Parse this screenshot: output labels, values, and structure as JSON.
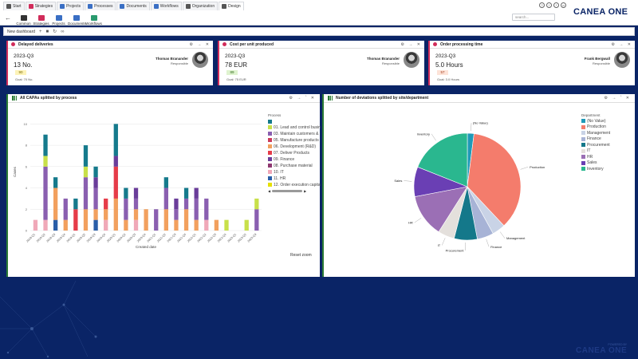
{
  "tabs": [
    {
      "label": "Start",
      "color": "#555"
    },
    {
      "label": "Strategies",
      "color": "#d12c5a"
    },
    {
      "label": "Projects",
      "color": "#3a6fc4"
    },
    {
      "label": "Processes",
      "color": "#3a6fc4"
    },
    {
      "label": "Documents",
      "color": "#3a6fc4"
    },
    {
      "label": "Workflows",
      "color": "#3a6fc4"
    },
    {
      "label": "Organization",
      "color": "#555"
    },
    {
      "label": "Design",
      "color": "#555"
    }
  ],
  "subnav": [
    {
      "label": "Common",
      "color": "#333"
    },
    {
      "label": "Strategies",
      "color": "#d12c5a"
    },
    {
      "label": "Projects",
      "color": "#3a6fc4"
    },
    {
      "label": "Documents",
      "color": "#3a6fc4"
    },
    {
      "label": "Workflows",
      "color": "#2a9a6e"
    }
  ],
  "search_placeholder": "search...",
  "logo_a": "CANEA ",
  "logo_b": "ONE",
  "dashboard_title": "New dashboard",
  "kpis": [
    {
      "title": "Delayed deliveries",
      "quarter": "2023-Q3",
      "value": "13 No.",
      "badge": "90",
      "badge_bg": "#fdf3b8",
      "badge_fg": "#7a6a00",
      "goal": "Goal: 70 No.",
      "name": "Thomas Branander",
      "role": "Responsible"
    },
    {
      "title": "Cost per unit produced",
      "quarter": "2023-Q3",
      "value": "78 EUR",
      "badge": "89",
      "badge_bg": "#dff3cf",
      "badge_fg": "#2f6b1a",
      "goal": "Goal: 75 EUR",
      "name": "Thomas Branander",
      "role": "Responsible"
    },
    {
      "title": "Order processing time",
      "quarter": "2023-Q3",
      "value": "5.0 Hours",
      "badge": "57",
      "badge_bg": "#fde3d8",
      "badge_fg": "#a33b1a",
      "goal": "Goal: 3.0 Hours",
      "name": "Frank Bergwall",
      "role": "Responsible"
    }
  ],
  "left_panel": {
    "title": "All CAPAs splitted by process",
    "legend_title": "Process",
    "legend_items": [
      {
        "label": "",
        "color": "#157a8c"
      },
      {
        "label": "01. Lead and control busin",
        "color": "#c8e04a"
      },
      {
        "label": "03. Maintain customers &",
        "color": "#8a5fb0"
      },
      {
        "label": "05. Manufacture products",
        "color": "#cc3b5a"
      },
      {
        "label": "06. Development (R&D)",
        "color": "#f2a05e"
      },
      {
        "label": "07. Deliver Products",
        "color": "#e63c49"
      },
      {
        "label": "09. Finance",
        "color": "#6a3d9a"
      },
      {
        "label": "08. Purchase material",
        "color": "#8e3770"
      },
      {
        "label": "10. IT",
        "color": "#f0a8b8"
      },
      {
        "label": "11. HR",
        "color": "#2a5ea8"
      },
      {
        "label": "12. Order execution capita",
        "color": "#e6e000"
      }
    ],
    "page_nav": "1/2",
    "reset": "Reset zoom"
  },
  "chart_data": [
    {
      "type": "bar",
      "stacked": true,
      "title": "All CAPAs splitted by process",
      "xlabel": "Created date",
      "ylabel": "Cases",
      "ylim": [
        0,
        11
      ],
      "yticks": [
        0,
        2,
        4,
        6,
        8,
        10
      ],
      "categories": [
        "2018-Q1",
        "2018-Q2",
        "2018-Q3",
        "2018-Q4",
        "2019-Q1",
        "2019-Q2",
        "2019-Q3",
        "2019-Q4",
        "2020-Q1",
        "2020-Q2",
        "2020-Q3",
        "2020-Q4",
        "2021-Q1",
        "2021-Q2",
        "2021-Q3",
        "2021-Q4",
        "2022-Q1",
        "2022-Q2",
        "2022-Q3",
        "2022-Q4",
        "2023-Q1",
        "2023-Q2",
        "2023-Q3"
      ],
      "series": [
        {
          "name": "10. IT",
          "color": "#f0a8b8",
          "values": [
            1,
            1,
            0,
            0,
            0,
            0,
            0,
            1,
            0,
            0,
            1,
            0,
            0,
            0,
            0,
            0,
            0,
            1,
            0,
            0,
            0,
            0,
            0
          ]
        },
        {
          "name": "11. HR",
          "color": "#2a5ea8",
          "values": [
            0,
            0,
            1,
            0,
            0,
            0,
            1,
            0,
            0,
            0,
            0,
            0,
            0,
            0,
            0,
            0,
            0,
            0,
            0,
            0,
            0,
            0,
            0
          ]
        },
        {
          "name": "06. Development (R&D)",
          "color": "#f2a05e",
          "values": [
            0,
            0,
            3,
            1,
            0,
            2,
            1,
            1,
            3,
            1,
            1,
            2,
            0,
            2,
            1,
            2,
            1,
            0,
            1,
            0,
            0,
            0,
            0
          ]
        },
        {
          "name": "07. Deliver Products",
          "color": "#e63c49",
          "values": [
            0,
            0,
            0,
            0,
            2,
            0,
            0,
            1,
            3,
            0,
            0,
            0,
            0,
            0,
            0,
            0,
            0,
            0,
            0,
            0,
            0,
            0,
            0
          ]
        },
        {
          "name": "03. Maintain customers &",
          "color": "#8a5fb0",
          "values": [
            0,
            5,
            0,
            2,
            0,
            3,
            2,
            0,
            0,
            2,
            1,
            0,
            2,
            2,
            1,
            1,
            2,
            2,
            0,
            0,
            0,
            0,
            2
          ]
        },
        {
          "name": "09. Finance",
          "color": "#6a3d9a",
          "values": [
            0,
            0,
            0,
            0,
            0,
            0,
            1,
            0,
            1,
            0,
            1,
            0,
            0,
            0,
            1,
            0,
            1,
            0,
            0,
            0,
            0,
            0,
            0
          ]
        },
        {
          "name": "01. Lead and control busin",
          "color": "#c8e04a",
          "values": [
            0,
            1,
            0,
            0,
            0,
            1,
            0,
            0,
            0,
            0,
            0,
            0,
            0,
            0,
            0,
            0,
            0,
            0,
            0,
            1,
            0,
            1,
            1
          ]
        },
        {
          "name": "",
          "color": "#157a8c",
          "values": [
            0,
            2,
            1,
            0,
            1,
            2,
            1,
            0,
            3,
            1,
            0,
            0,
            0,
            1,
            0,
            1,
            0,
            0,
            0,
            0,
            0,
            0,
            0
          ]
        }
      ]
    },
    {
      "type": "pie",
      "title": "Number of deviations splitted by site/department",
      "legend_title": "Department",
      "labels": [
        "(No Value)",
        "Production",
        "Management",
        "Finance",
        "Procurement",
        "IT",
        "HR",
        "Sales",
        "Inventory"
      ],
      "values": [
        2,
        36,
        4,
        5,
        7,
        5,
        13,
        9,
        19
      ],
      "colors": [
        "#1f9ab8",
        "#f47c6c",
        "#c9d3e6",
        "#a7b3d6",
        "#14788a",
        "#e4e0dc",
        "#9b6fb5",
        "#6a3fb4",
        "#2ab78f"
      ]
    }
  ],
  "right_panel": {
    "title": "Number of deviations splitted by site/department"
  },
  "footer_brand": "CANEA ONE",
  "footer_sub": "POWERED BY"
}
